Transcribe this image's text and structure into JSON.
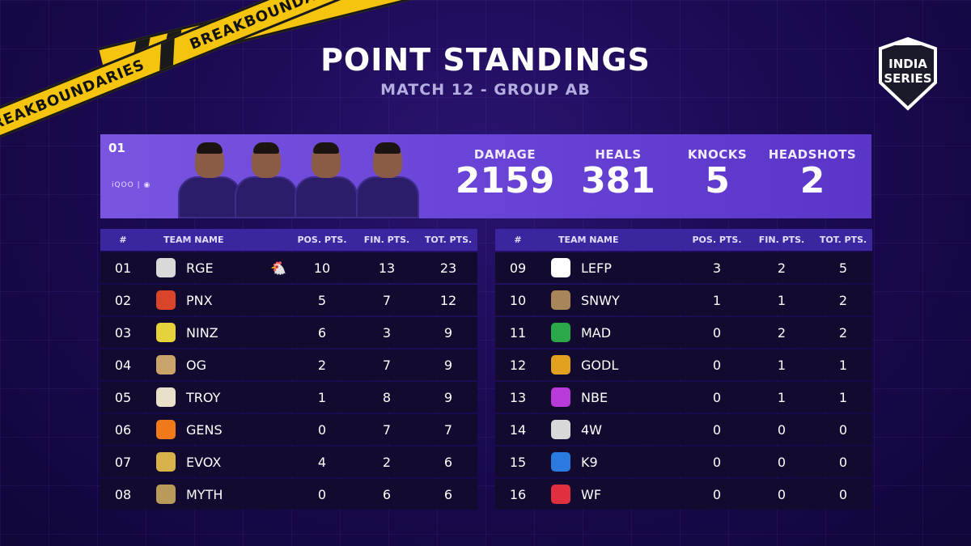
{
  "tape": {
    "text": "BREAKBOUNDARIES"
  },
  "header": {
    "title": "POINT STANDINGS",
    "subtitle": "MATCH 12 - GROUP AB"
  },
  "logo": {
    "line1": "INDIA",
    "line2": "SERIES"
  },
  "top_team": {
    "rank": "01",
    "sponsor": "iQOO | ◉",
    "stats": [
      {
        "label": "DAMAGE",
        "value": "2159"
      },
      {
        "label": "HEALS",
        "value": "381"
      },
      {
        "label": "KNOCKS",
        "value": "5"
      },
      {
        "label": "HEADSHOTS",
        "value": "2"
      }
    ]
  },
  "columns": {
    "rank": "#",
    "team": "TEAM NAME",
    "pos": "POS. PTS.",
    "fin": "FIN. PTS.",
    "tot": "TOT. PTS."
  },
  "colors": {
    "accent": "#6a45d8",
    "header_row": "#3a27a0",
    "row": "#130a30",
    "tape": "#f4c40e"
  },
  "left_rows": [
    {
      "rank": "01",
      "team": "RGE",
      "pos": "10",
      "fin": "13",
      "tot": "23",
      "logo_color": "#d9d9d9",
      "chicken": "🐔"
    },
    {
      "rank": "02",
      "team": "PNX",
      "pos": "5",
      "fin": "7",
      "tot": "12",
      "logo_color": "#d9452b"
    },
    {
      "rank": "03",
      "team": "NINZ",
      "pos": "6",
      "fin": "3",
      "tot": "9",
      "logo_color": "#e6d23a"
    },
    {
      "rank": "04",
      "team": "OG",
      "pos": "2",
      "fin": "7",
      "tot": "9",
      "logo_color": "#c9a36a"
    },
    {
      "rank": "05",
      "team": "TROY",
      "pos": "1",
      "fin": "8",
      "tot": "9",
      "logo_color": "#e8e0c8"
    },
    {
      "rank": "06",
      "team": "GENS",
      "pos": "0",
      "fin": "7",
      "tot": "7",
      "logo_color": "#f07a1a"
    },
    {
      "rank": "07",
      "team": "EVOX",
      "pos": "4",
      "fin": "2",
      "tot": "6",
      "logo_color": "#d7b24a"
    },
    {
      "rank": "08",
      "team": "MYTH",
      "pos": "0",
      "fin": "6",
      "tot": "6",
      "logo_color": "#b89a5a"
    }
  ],
  "right_rows": [
    {
      "rank": "09",
      "team": "LEFP",
      "pos": "3",
      "fin": "2",
      "tot": "5",
      "logo_color": "#ffffff"
    },
    {
      "rank": "10",
      "team": "SNWY",
      "pos": "1",
      "fin": "1",
      "tot": "2",
      "logo_color": "#a8865a"
    },
    {
      "rank": "11",
      "team": "MAD",
      "pos": "0",
      "fin": "2",
      "tot": "2",
      "logo_color": "#2aa84a"
    },
    {
      "rank": "12",
      "team": "GODL",
      "pos": "0",
      "fin": "1",
      "tot": "1",
      "logo_color": "#e0a020"
    },
    {
      "rank": "13",
      "team": "NBE",
      "pos": "0",
      "fin": "1",
      "tot": "1",
      "logo_color": "#b83ad8"
    },
    {
      "rank": "14",
      "team": "4W",
      "pos": "0",
      "fin": "0",
      "tot": "0",
      "logo_color": "#d8d8d8"
    },
    {
      "rank": "15",
      "team": "K9",
      "pos": "0",
      "fin": "0",
      "tot": "0",
      "logo_color": "#2a7ae0"
    },
    {
      "rank": "16",
      "team": "WF",
      "pos": "0",
      "fin": "0",
      "tot": "0",
      "logo_color": "#e03040"
    }
  ]
}
